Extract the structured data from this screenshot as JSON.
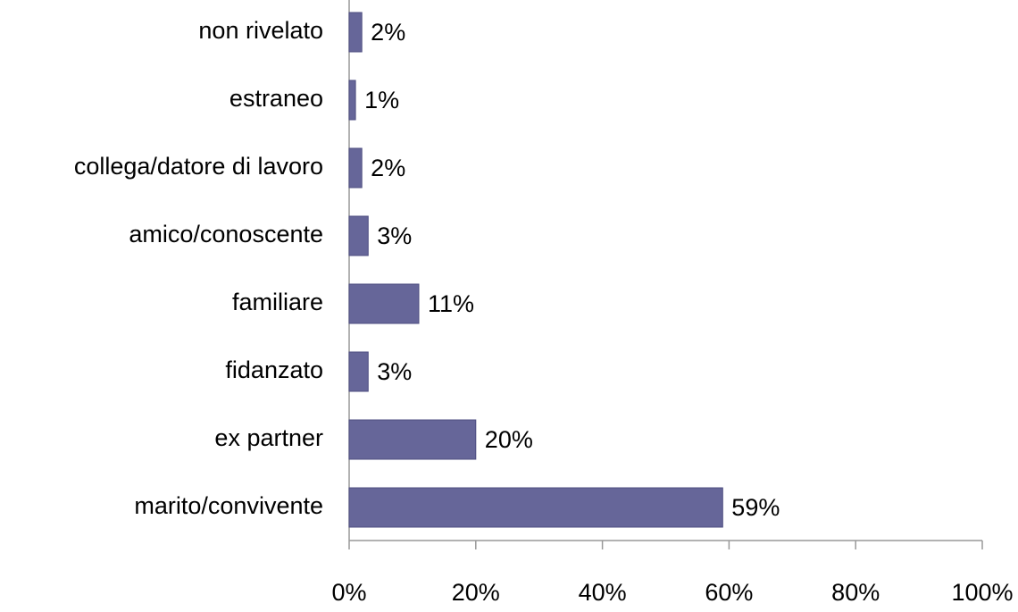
{
  "chart_data": {
    "type": "bar",
    "orientation": "horizontal",
    "categories": [
      "non rivelato",
      "estraneo",
      "collega/datore di lavoro",
      "amico/conoscente",
      "familiare",
      "fidanzato",
      "ex partner",
      "marito/convivente"
    ],
    "values": [
      2,
      1,
      2,
      3,
      11,
      3,
      20,
      59
    ],
    "value_labels": [
      "2%",
      "1%",
      "2%",
      "3%",
      "11%",
      "3%",
      "20%",
      "59%"
    ],
    "color": "#666699",
    "xlim": [
      0,
      100
    ],
    "xticks": [
      {
        "value": 0,
        "label": "0%"
      },
      {
        "value": 20,
        "label": "20%"
      },
      {
        "value": 40,
        "label": "40%"
      },
      {
        "value": 60,
        "label": "60%"
      },
      {
        "value": 80,
        "label": "80%"
      },
      {
        "value": 100,
        "label": "100%"
      }
    ],
    "grid": false
  }
}
